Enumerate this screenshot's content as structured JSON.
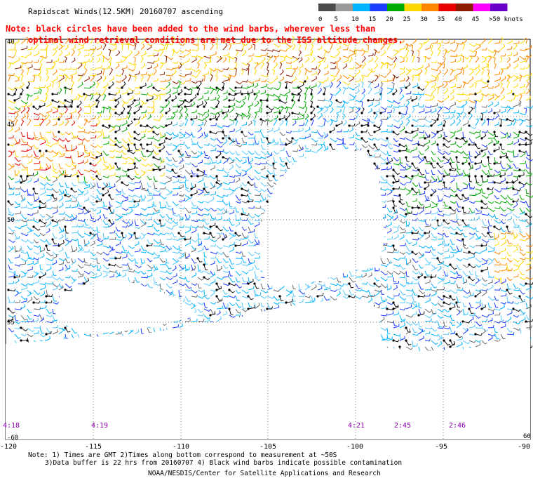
{
  "header": {
    "title": "Rapidscat Winds(12.5KM) 20160707 ascending",
    "warning_line1": "Note: black circles have been added to the wind barbs, wherever less than",
    "warning_line2": "optimal wind retrieval conditions are met due to the ISS altitude changes."
  },
  "legend": {
    "ticks": [
      "0",
      "5",
      "10",
      "15",
      "20",
      "25",
      "30",
      "35",
      "40",
      "45",
      ">50 knots"
    ],
    "colors": [
      "#4a4a4a",
      "#9a9a9a",
      "#00b4ff",
      "#1c3cff",
      "#00aa00",
      "#ffd800",
      "#ff8800",
      "#e80000",
      "#8b1a00",
      "#ff00ff",
      "#6a00c8"
    ]
  },
  "axes": {
    "lon_labels": [
      "-120",
      "-115",
      "-110",
      "-105",
      "-100",
      "-95",
      "-90"
    ],
    "lat_labels": [
      "40",
      "45",
      "50",
      "55",
      "60"
    ],
    "extra_lat_label": "-60"
  },
  "pass_times": [
    "4:18",
    "4:19",
    "4:21",
    "2:45",
    "2:46"
  ],
  "footer": {
    "note_line1": "Note: 1) Times are GMT 2)Times along bottom correspond to measurement at ~50S",
    "note_line2": "3)Data buffer is 22 hrs from 20160707 4) Black wind barbs indicate possible contamination",
    "credit": "NOAA/NESDIS/Center for Satellite Applications and Research"
  },
  "colors": {
    "warning": "#ff0000",
    "pass_time": "#8800aa",
    "text": "#000000",
    "grid": "#444444"
  }
}
